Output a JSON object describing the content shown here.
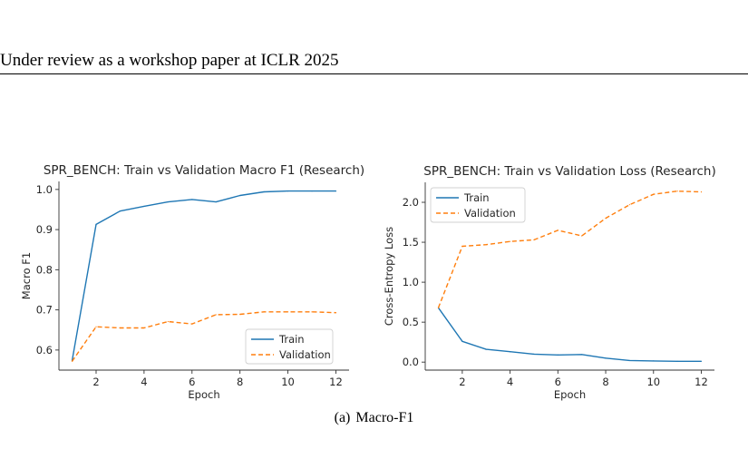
{
  "page": {
    "running_header": "Under review as a workshop paper at ICLR 2025",
    "caption_label": "(a)",
    "caption_text": "Macro-F1"
  },
  "colors": {
    "train": "#1f77b4",
    "validation": "#ff7f0e",
    "axis": "#333333",
    "text": "#262626"
  },
  "chart_data": [
    {
      "type": "line",
      "title": "SPR_BENCH: Train vs Validation Macro F1 (Research)",
      "xlabel": "Epoch",
      "ylabel": "Macro F1",
      "xlim": [
        0.45,
        12.55
      ],
      "ylim": [
        0.55,
        1.02
      ],
      "xticks": [
        2,
        4,
        6,
        8,
        10,
        12
      ],
      "yticks": [
        0.6,
        0.7,
        0.8,
        0.9,
        1.0
      ],
      "ytick_labels": [
        "0.6",
        "0.7",
        "0.8",
        "0.9",
        "1.0"
      ],
      "grid": false,
      "legend_position": "lower-right",
      "x": [
        1,
        2,
        3,
        4,
        5,
        6,
        7,
        8,
        9,
        10,
        11,
        12
      ],
      "series": [
        {
          "name": "Train",
          "style": "solid",
          "values": [
            0.573,
            0.913,
            0.946,
            0.958,
            0.969,
            0.975,
            0.969,
            0.985,
            0.994,
            0.996,
            0.996,
            0.996
          ]
        },
        {
          "name": "Validation",
          "style": "dashed",
          "values": [
            0.572,
            0.658,
            0.655,
            0.655,
            0.671,
            0.665,
            0.688,
            0.689,
            0.695,
            0.695,
            0.695,
            0.693
          ]
        }
      ]
    },
    {
      "type": "line",
      "title": "SPR_BENCH: Train vs Validation Loss (Research)",
      "xlabel": "Epoch",
      "ylabel": "Cross-Entropy Loss",
      "xlim": [
        0.45,
        12.55
      ],
      "ylim": [
        -0.1,
        2.25
      ],
      "xticks": [
        2,
        4,
        6,
        8,
        10,
        12
      ],
      "yticks": [
        0.0,
        0.5,
        1.0,
        1.5,
        2.0
      ],
      "ytick_labels": [
        "0.0",
        "0.5",
        "1.0",
        "1.5",
        "2.0"
      ],
      "grid": false,
      "legend_position": "top-left",
      "x": [
        1,
        2,
        3,
        4,
        5,
        6,
        7,
        8,
        9,
        10,
        11,
        12
      ],
      "series": [
        {
          "name": "Train",
          "style": "solid",
          "values": [
            0.68,
            0.26,
            0.16,
            0.13,
            0.1,
            0.09,
            0.095,
            0.05,
            0.02,
            0.015,
            0.01,
            0.01
          ]
        },
        {
          "name": "Validation",
          "style": "dashed",
          "values": [
            0.68,
            1.45,
            1.47,
            1.51,
            1.53,
            1.65,
            1.58,
            1.8,
            1.97,
            2.1,
            2.14,
            2.13
          ]
        }
      ]
    }
  ]
}
